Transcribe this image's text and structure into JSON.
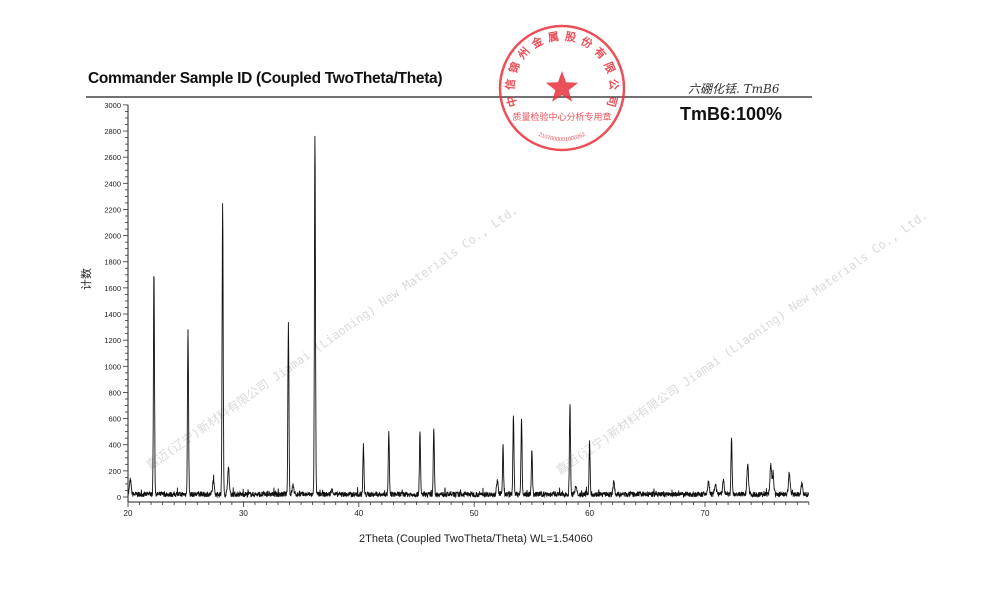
{
  "chart_data": {
    "type": "line",
    "title": "Commander Sample ID (Coupled TwoTheta/Theta)",
    "xlabel": "2Theta (Coupled TwoTheta/Theta) WL=1.54060",
    "ylabel": "计数",
    "xlim": [
      20,
      79
    ],
    "ylim": [
      0,
      3000
    ],
    "x_ticks": [
      20,
      30,
      40,
      50,
      60,
      70
    ],
    "y_ticks": [
      0,
      200,
      400,
      600,
      800,
      1000,
      1200,
      1400,
      1600,
      1800,
      2000,
      2200,
      2400,
      2600,
      2800,
      3000
    ],
    "grid": false,
    "color": "#111111",
    "baseline_counts": 20,
    "peaks": [
      {
        "x": 20.2,
        "y": 110
      },
      {
        "x": 22.25,
        "y": 1700
      },
      {
        "x": 25.2,
        "y": 1270
      },
      {
        "x": 27.4,
        "y": 100
      },
      {
        "x": 28.2,
        "y": 2230
      },
      {
        "x": 28.7,
        "y": 200
      },
      {
        "x": 33.9,
        "y": 1320
      },
      {
        "x": 34.3,
        "y": 70
      },
      {
        "x": 36.2,
        "y": 2730
      },
      {
        "x": 37.7,
        "y": 40
      },
      {
        "x": 40.4,
        "y": 380
      },
      {
        "x": 42.6,
        "y": 470
      },
      {
        "x": 45.3,
        "y": 480
      },
      {
        "x": 46.5,
        "y": 520
      },
      {
        "x": 52.0,
        "y": 100
      },
      {
        "x": 52.5,
        "y": 380
      },
      {
        "x": 53.4,
        "y": 610
      },
      {
        "x": 54.1,
        "y": 590
      },
      {
        "x": 55.0,
        "y": 350
      },
      {
        "x": 58.3,
        "y": 710
      },
      {
        "x": 58.8,
        "y": 60
      },
      {
        "x": 60.0,
        "y": 400
      },
      {
        "x": 62.1,
        "y": 90
      },
      {
        "x": 70.3,
        "y": 100
      },
      {
        "x": 70.9,
        "y": 85
      },
      {
        "x": 71.6,
        "y": 105
      },
      {
        "x": 72.3,
        "y": 440
      },
      {
        "x": 73.7,
        "y": 230
      },
      {
        "x": 75.7,
        "y": 230
      },
      {
        "x": 75.9,
        "y": 145
      },
      {
        "x": 77.3,
        "y": 165
      },
      {
        "x": 78.4,
        "y": 85
      }
    ],
    "annotations": [
      "六硼化铥. TmB6",
      "TmB6:100%"
    ]
  },
  "stamp": {
    "outer_text": "中信锦州金属股份有限公司",
    "inner_text": "质量检验中心分析专用章",
    "number": "2107000001000262",
    "color": "#e8313c"
  },
  "watermark": {
    "cn": "嘉迈(辽宁)新材料有限公司",
    "en": "Jiamai (Liaoning) New Materials Co., Ltd."
  }
}
